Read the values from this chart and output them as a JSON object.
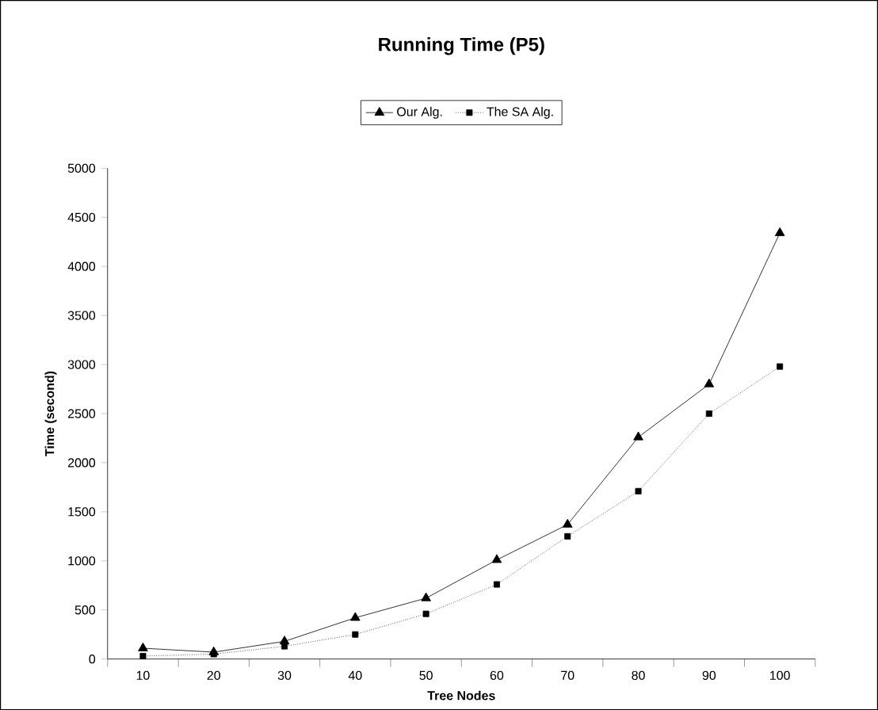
{
  "chart_data": {
    "type": "line",
    "title": "Running Time (P5)",
    "xlabel": "Tree Nodes",
    "ylabel": "Time (second)",
    "categories": [
      "10",
      "20",
      "30",
      "40",
      "50",
      "60",
      "70",
      "80",
      "90",
      "100"
    ],
    "series": [
      {
        "name": "Our Alg.",
        "color": "#000000",
        "marker": "triangle",
        "line_style": "solid",
        "values": [
          110,
          70,
          180,
          420,
          620,
          1010,
          1370,
          2260,
          2800,
          4340
        ]
      },
      {
        "name": "The SA Alg.",
        "color": "#000000",
        "marker": "square",
        "line_style": "dotted",
        "values": [
          30,
          50,
          130,
          250,
          460,
          760,
          1250,
          1710,
          2500,
          2980
        ]
      }
    ],
    "ylim": [
      0,
      5000
    ],
    "yticks": [
      0,
      500,
      1000,
      1500,
      2000,
      2500,
      3000,
      3500,
      4000,
      4500,
      5000
    ],
    "legend": "top",
    "grid": false
  }
}
